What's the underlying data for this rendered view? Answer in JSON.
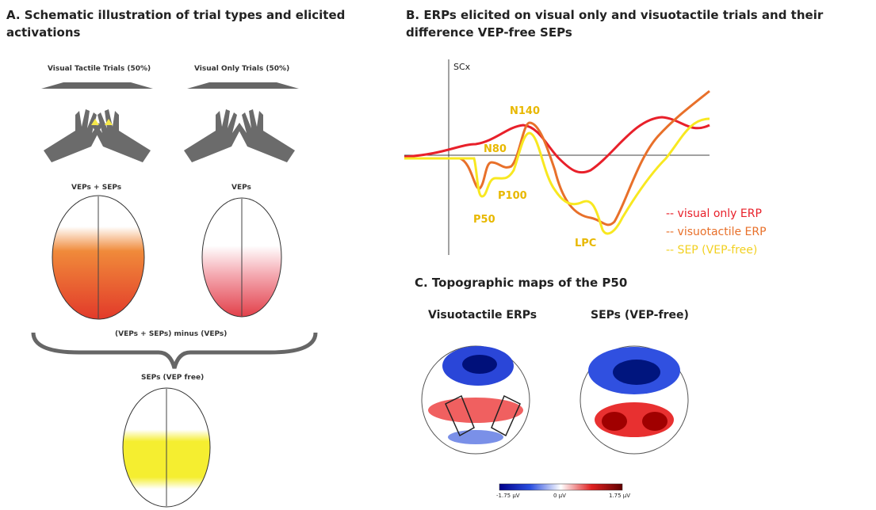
{
  "panel_a": {
    "title": "A. Schematic illustration of trial types and elicited activations",
    "trial_types": [
      "Visual Tactile Trials (50%)",
      "Visual Only Trials (50%)"
    ],
    "activations": [
      "VEPs + SEPs",
      "VEPs"
    ],
    "operation": "(VEPs + SEPs) minus (VEPs)",
    "result": "SEPs (VEP free)"
  },
  "panel_b": {
    "title": "B. ERPs elicited on visual only and visuotactile trials and their difference VEP-free SEPs",
    "channel": "SCx",
    "peaks": [
      "N140",
      "N80",
      "P50",
      "P100",
      "LPC"
    ],
    "legend": [
      "-- visual only ERP",
      "-- visuotactile ERP",
      "-- SEP (VEP-free)"
    ]
  },
  "panel_c": {
    "title": "C. Topographic maps of the P50",
    "maps": [
      "Visuotactile ERPs",
      "SEPs (VEP-free)"
    ],
    "colorbar": [
      "-1.75 µV",
      "0 µV",
      "1.75 µV"
    ]
  }
}
